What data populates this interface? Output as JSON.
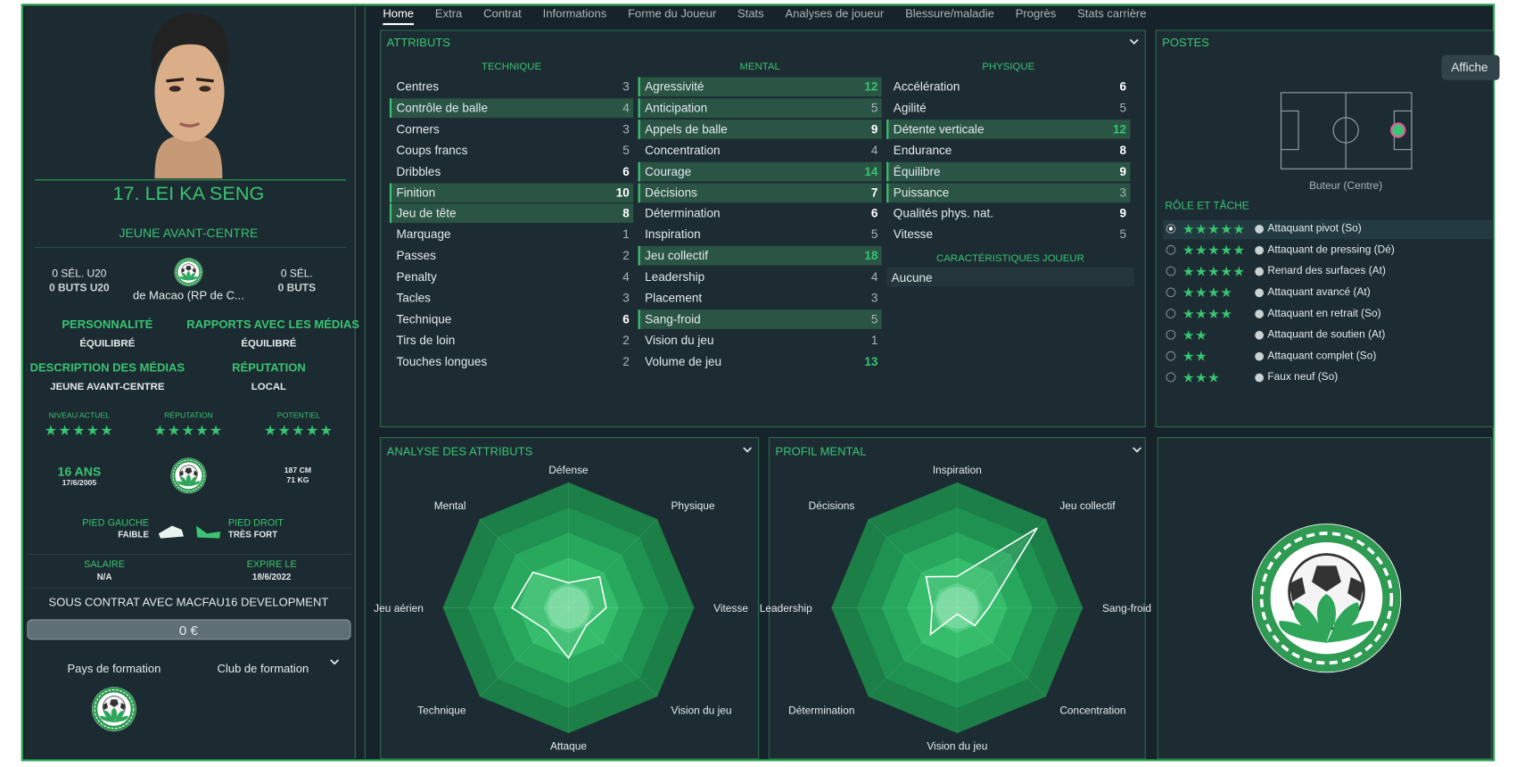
{
  "player": {
    "name": "17. LEI KA SENG",
    "position": "JEUNE AVANT-CENTRE",
    "u20_caps": "0 SÉL. U20",
    "u20_goals": "0 BUTS U20",
    "nation": "de Macao (RP de C...",
    "caps": "0 SÉL.",
    "goals": "0 BUTS",
    "profile": [
      {
        "label": "PERSONNALITÉ",
        "value": "ÉQUILIBRÉ"
      },
      {
        "label": "RAPPORTS AVEC LES MÉDIAS",
        "value": "ÉQUILIBRÉ"
      },
      {
        "label": "DESCRIPTION DES MÉDIAS",
        "value": "JEUNE AVANT-CENTRE"
      },
      {
        "label": "RÉPUTATION",
        "value": "LOCAL"
      }
    ],
    "ratings": [
      {
        "label": "NIVEAU ACTUEL",
        "stars": 5
      },
      {
        "label": "RÉPUTATION",
        "stars": 5
      },
      {
        "label": "POTENTIEL",
        "stars": 5
      }
    ],
    "age": "16 ANS",
    "dob": "17/6/2005",
    "height": "187 CM",
    "weight": "71 KG",
    "feet": [
      {
        "label": "PIED GAUCHE",
        "value": "FAIBLE"
      },
      {
        "label": "PIED DROIT",
        "value": "TRÈS FORT"
      }
    ],
    "contract": [
      {
        "label": "SALAIRE",
        "value": "N/A"
      },
      {
        "label": "EXPIRE LE",
        "value": "18/6/2022"
      }
    ],
    "club_line": "SOUS CONTRAT AVEC MACFAU16 DEVELOPMENT",
    "value": "0 €",
    "training": [
      "Pays de formation",
      "Club de formation"
    ]
  },
  "tabs": [
    {
      "label": "Home",
      "active": true
    },
    {
      "label": "Extra"
    },
    {
      "label": "Contrat"
    },
    {
      "label": "Informations"
    },
    {
      "label": "Forme du Joueur"
    },
    {
      "label": "Stats"
    },
    {
      "label": "Analyses de joueur"
    },
    {
      "label": "Blessure/maladie"
    },
    {
      "label": "Progrès"
    },
    {
      "label": "Stats carrière"
    }
  ],
  "attributes": {
    "title": "ATTRIBUTS",
    "columns": [
      {
        "title": "TECHNIQUE",
        "rows": [
          {
            "name": "Centres",
            "value": 3
          },
          {
            "name": "Contrôle de balle",
            "value": 4,
            "highlight": true
          },
          {
            "name": "Corners",
            "value": 3
          },
          {
            "name": "Coups francs",
            "value": 5
          },
          {
            "name": "Dribbles",
            "value": 6
          },
          {
            "name": "Finition",
            "value": 10,
            "highlight": true
          },
          {
            "name": "Jeu de tête",
            "value": 8,
            "highlight": true
          },
          {
            "name": "Marquage",
            "value": 1
          },
          {
            "name": "Passes",
            "value": 2
          },
          {
            "name": "Penalty",
            "value": 4
          },
          {
            "name": "Tacles",
            "value": 3
          },
          {
            "name": "Technique",
            "value": 6
          },
          {
            "name": "Tirs de loin",
            "value": 2
          },
          {
            "name": "Touches longues",
            "value": 2
          }
        ]
      },
      {
        "title": "MENTAL",
        "rows": [
          {
            "name": "Agressivité",
            "value": 12,
            "highlight": true
          },
          {
            "name": "Anticipation",
            "value": 5,
            "highlight": true
          },
          {
            "name": "Appels de balle",
            "value": 9,
            "highlight": true
          },
          {
            "name": "Concentration",
            "value": 4
          },
          {
            "name": "Courage",
            "value": 14,
            "highlight": true
          },
          {
            "name": "Décisions",
            "value": 7,
            "highlight": true
          },
          {
            "name": "Détermination",
            "value": 6
          },
          {
            "name": "Inspiration",
            "value": 5
          },
          {
            "name": "Jeu collectif",
            "value": 18,
            "highlight": true
          },
          {
            "name": "Leadership",
            "value": 4
          },
          {
            "name": "Placement",
            "value": 3
          },
          {
            "name": "Sang-froid",
            "value": 5,
            "highlight": true
          },
          {
            "name": "Vision du jeu",
            "value": 1
          },
          {
            "name": "Volume de jeu",
            "value": 13
          }
        ]
      },
      {
        "title": "PHYSIQUE",
        "rows": [
          {
            "name": "Accélération",
            "value": 6
          },
          {
            "name": "Agilité",
            "value": 5
          },
          {
            "name": "Détente verticale",
            "value": 12,
            "highlight": true
          },
          {
            "name": "Endurance",
            "value": 8
          },
          {
            "name": "Équilibre",
            "value": 9,
            "highlight": true
          },
          {
            "name": "Puissance",
            "value": 3,
            "highlight": true
          },
          {
            "name": "Qualités phys. nat.",
            "value": 9
          },
          {
            "name": "Vitesse",
            "value": 5
          }
        ]
      }
    ],
    "characteristics": {
      "title": "CARACTÉRISTIQUES JOUEUR",
      "value": "Aucune"
    }
  },
  "positions": {
    "title": "POSTES",
    "button": "Affiche",
    "position": "Buteur (Centre)",
    "roles_title": "RÔLE ET TÂCHE",
    "roles": [
      {
        "name": "Attaquant pivot (So)",
        "stars": 5,
        "selected": true
      },
      {
        "name": "Attaquant de pressing (Dé)",
        "stars": 5
      },
      {
        "name": "Renard des surfaces (At)",
        "stars": 5
      },
      {
        "name": "Attaquant avancé (At)",
        "stars": 4
      },
      {
        "name": "Attaquant en retrait (So)",
        "stars": 4
      },
      {
        "name": "Attaquant de soutien (At)",
        "stars": 2
      },
      {
        "name": "Attaquant complet (So)",
        "stars": 2
      },
      {
        "name": "Faux neuf (So)",
        "stars": 3
      }
    ]
  },
  "radar_attributes": {
    "title": "ANALYSE DES ATTRIBUTS",
    "rlim": [
      0,
      20
    ],
    "axes": [
      {
        "label": "Défense",
        "value": 4
      },
      {
        "label": "Physique",
        "value": 7
      },
      {
        "label": "Vitesse",
        "value": 6
      },
      {
        "label": "Vision du jeu",
        "value": 4
      },
      {
        "label": "Attaque",
        "value": 8
      },
      {
        "label": "Technique",
        "value": 5
      },
      {
        "label": "Jeu aérien",
        "value": 9
      },
      {
        "label": "Mental",
        "value": 8
      }
    ]
  },
  "radar_mental": {
    "title": "PROFIL MENTAL",
    "rlim": [
      0,
      20
    ],
    "axes": [
      {
        "label": "Inspiration",
        "value": 5
      },
      {
        "label": "Jeu collectif",
        "value": 18
      },
      {
        "label": "Sang-froid",
        "value": 5
      },
      {
        "label": "Concentration",
        "value": 4
      },
      {
        "label": "Vision du jeu",
        "value": 1
      },
      {
        "label": "Détermination",
        "value": 6
      },
      {
        "label": "Leadership",
        "value": 4
      },
      {
        "label": "Décisions",
        "value": 7
      }
    ]
  }
}
